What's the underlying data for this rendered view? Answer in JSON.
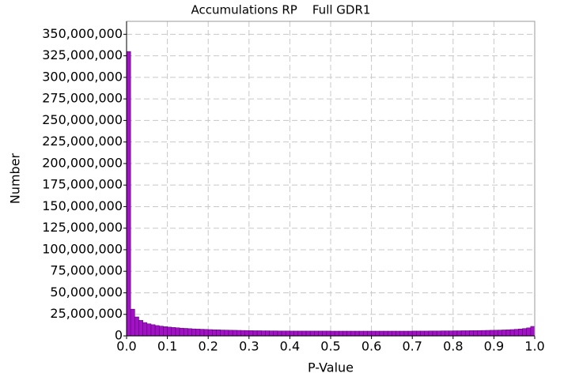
{
  "chart_data": {
    "type": "histogram",
    "title": "Accumulations RP    Full GDR1",
    "x_label": "P-Value",
    "y_label": "Number",
    "bins": [
      0,
      0.01,
      0.02,
      0.03,
      0.04,
      0.05,
      0.06,
      0.07,
      0.08,
      0.09,
      0.1,
      0.11,
      0.12,
      0.13,
      0.14,
      0.15,
      0.16,
      0.17,
      0.18,
      0.19,
      0.2,
      0.21,
      0.22,
      0.23,
      0.24,
      0.25,
      0.26,
      0.27,
      0.28,
      0.29,
      0.3,
      0.31,
      0.32,
      0.33,
      0.34,
      0.35,
      0.36,
      0.37,
      0.38,
      0.39,
      0.4,
      0.41,
      0.42,
      0.43,
      0.44,
      0.45,
      0.46,
      0.47,
      0.48,
      0.49,
      0.5,
      0.51,
      0.52,
      0.53,
      0.54,
      0.55,
      0.56,
      0.57,
      0.58,
      0.59,
      0.6,
      0.61,
      0.62,
      0.63,
      0.64,
      0.65,
      0.66,
      0.67,
      0.68,
      0.69,
      0.7,
      0.71,
      0.72,
      0.73,
      0.74,
      0.75,
      0.76,
      0.77,
      0.78,
      0.79,
      0.8,
      0.81,
      0.82,
      0.83,
      0.84,
      0.85,
      0.86,
      0.87,
      0.88,
      0.89,
      0.9,
      0.91,
      0.92,
      0.93,
      0.94,
      0.95,
      0.96,
      0.97,
      0.98,
      0.99,
      1.0
    ],
    "values": [
      330000000,
      31000000,
      22000000,
      18000000,
      15500000,
      14000000,
      13000000,
      12000000,
      11300000,
      10700000,
      10200000,
      9800000,
      9400000,
      9000000,
      8700000,
      8400000,
      8100000,
      7900000,
      7700000,
      7500000,
      7300000,
      7100000,
      7000000,
      6800000,
      6700000,
      6600000,
      6500000,
      6400000,
      6300000,
      6200000,
      6100000,
      6000000,
      6000000,
      5900000,
      5900000,
      5800000,
      5800000,
      5700000,
      5700000,
      5700000,
      5600000,
      5600000,
      5600000,
      5600000,
      5600000,
      5600000,
      5600000,
      5600000,
      5600000,
      5600000,
      5500000,
      5500000,
      5500000,
      5500000,
      5500000,
      5500000,
      5500000,
      5500000,
      5500000,
      5500000,
      5500000,
      5500000,
      5500000,
      5500000,
      5500000,
      5500000,
      5500000,
      5500000,
      5500000,
      5500000,
      5600000,
      5600000,
      5600000,
      5600000,
      5700000,
      5700000,
      5700000,
      5800000,
      5800000,
      5800000,
      5900000,
      5900000,
      6000000,
      6000000,
      6100000,
      6100000,
      6200000,
      6300000,
      6400000,
      6500000,
      6600000,
      6700000,
      6900000,
      7100000,
      7300000,
      7600000,
      8000000,
      8500000,
      9300000,
      11000000
    ],
    "color": "#a012c4",
    "edge_color": "#5e0078",
    "xlim": [
      0,
      1
    ],
    "xticks": [
      {
        "value": 0,
        "label": "0.0"
      },
      0.1,
      0.2,
      0.3,
      0.4,
      0.5,
      0.6,
      0.7,
      0.8,
      0.9,
      {
        "value": 1,
        "label": "1.0"
      }
    ],
    "ylim": [
      0,
      365000000
    ],
    "yticks": [
      {
        "value": 0,
        "label": "0"
      },
      {
        "value": 25000000,
        "label": "25,000,000"
      },
      {
        "value": 50000000,
        "label": "50,000,000"
      },
      {
        "value": 75000000,
        "label": "75,000,000"
      },
      {
        "value": 100000000,
        "label": "100,000,000"
      },
      {
        "value": 125000000,
        "label": "125,000,000"
      },
      {
        "value": 150000000,
        "label": "150,000,000"
      },
      {
        "value": 175000000,
        "label": "175,000,000"
      },
      {
        "value": 200000000,
        "label": "200,000,000"
      },
      {
        "value": 225000000,
        "label": "225,000,000"
      },
      {
        "value": 250000000,
        "label": "250,000,000"
      },
      {
        "value": 275000000,
        "label": "275,000,000"
      },
      {
        "value": 300000000,
        "label": "300,000,000"
      },
      {
        "value": 325000000,
        "label": "325,000,000"
      },
      {
        "value": 350000000,
        "label": "350,000,000"
      }
    ],
    "grid": true
  }
}
